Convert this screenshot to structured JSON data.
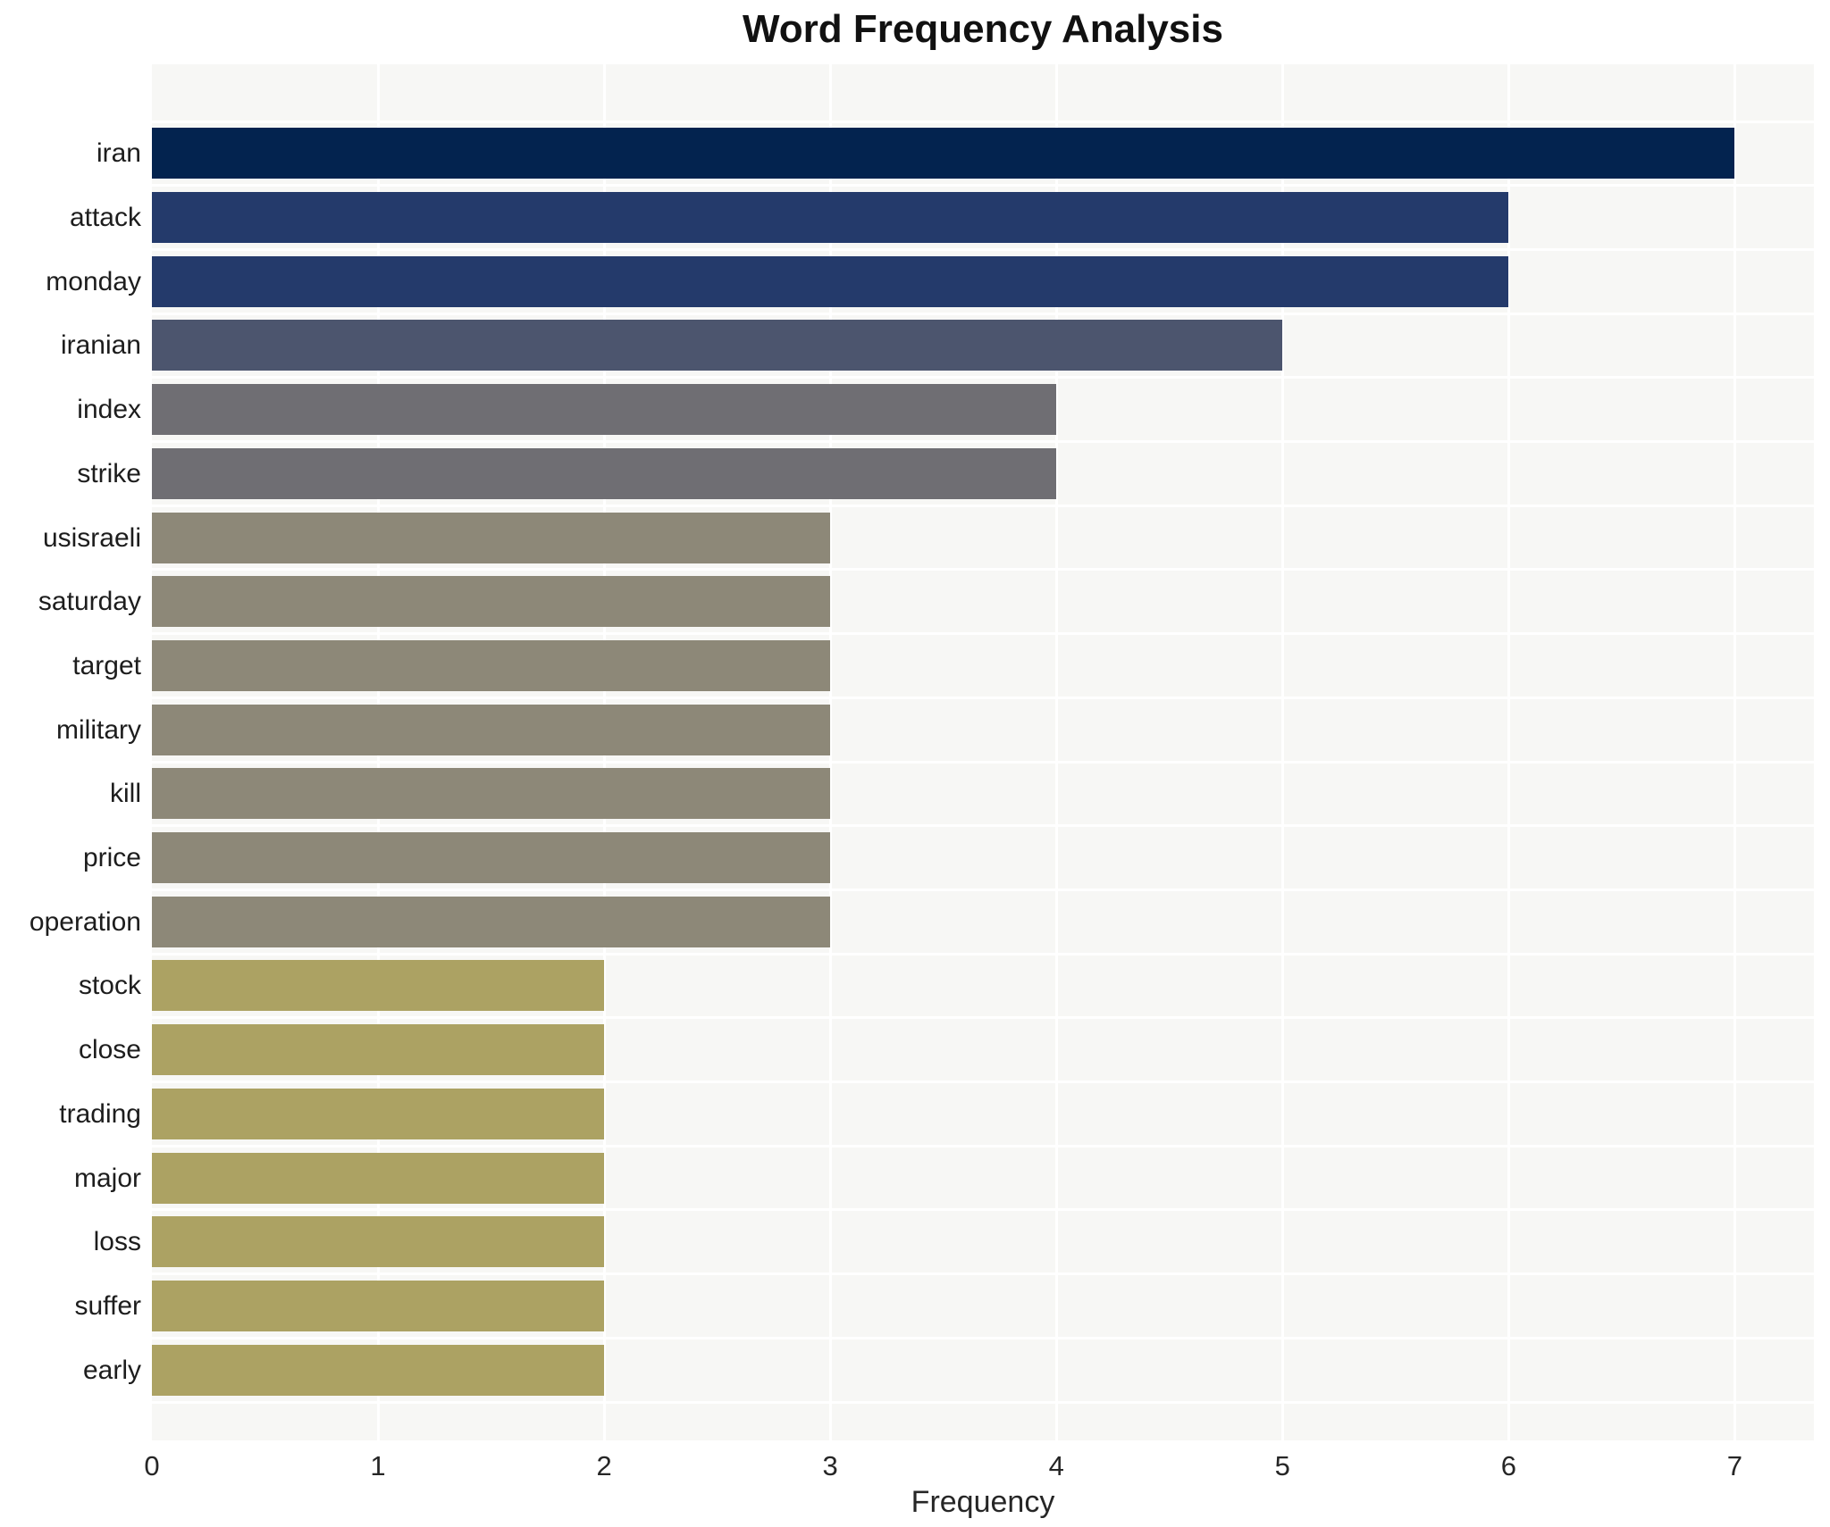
{
  "title": "Word Frequency Analysis",
  "chart_data": {
    "type": "bar",
    "orientation": "horizontal",
    "title": "Word Frequency Analysis",
    "xlabel": "Frequency",
    "ylabel": "",
    "categories": [
      "iran",
      "attack",
      "monday",
      "iranian",
      "index",
      "strike",
      "usisraeli",
      "saturday",
      "target",
      "military",
      "kill",
      "price",
      "operation",
      "stock",
      "close",
      "trading",
      "major",
      "loss",
      "suffer",
      "early"
    ],
    "values": [
      7,
      6,
      6,
      5,
      4,
      4,
      3,
      3,
      3,
      3,
      3,
      3,
      3,
      2,
      2,
      2,
      2,
      2,
      2,
      2
    ],
    "bar_colors": [
      "#03234f",
      "#243a6b",
      "#243a6b",
      "#4c556e",
      "#6f6e73",
      "#6f6e73",
      "#8d8878",
      "#8d8878",
      "#8d8878",
      "#8d8878",
      "#8d8878",
      "#8d8878",
      "#8d8878",
      "#aca263",
      "#aca263",
      "#aca263",
      "#aca263",
      "#aca263",
      "#aca263",
      "#aca263"
    ],
    "xticks": [
      0,
      1,
      2,
      3,
      4,
      5,
      6,
      7
    ],
    "xlim": [
      0,
      7.35
    ],
    "grid": true,
    "legend": false,
    "plot_bg_color": "#f7f7f5",
    "grid_color": "#ffffff",
    "page_bg_color": "#ffffff"
  }
}
